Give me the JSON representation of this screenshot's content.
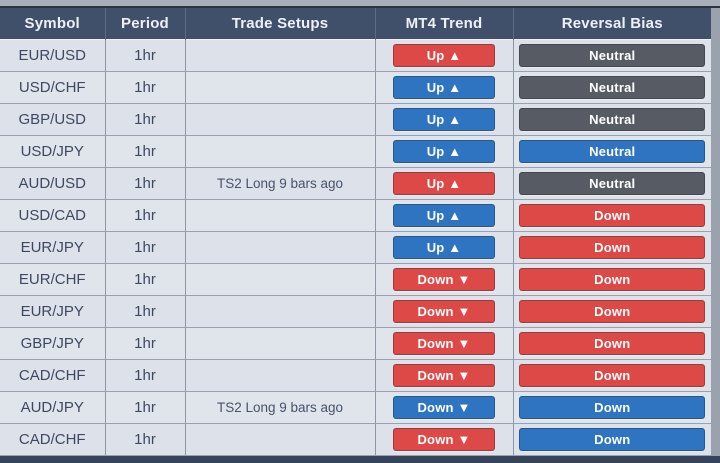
{
  "table": {
    "columns": [
      "Symbol",
      "Period",
      "Trade Setups",
      "MT4 Trend",
      "Reversal Bias"
    ],
    "rows": [
      {
        "symbol": "EUR/USD",
        "period": "1hr",
        "setup": "",
        "trend_label": "Up ▲",
        "trend_color": "red",
        "bias_label": "Neutral",
        "bias_color": "gray"
      },
      {
        "symbol": "USD/CHF",
        "period": "1hr",
        "setup": "",
        "trend_label": "Up ▲",
        "trend_color": "blue",
        "bias_label": "Neutral",
        "bias_color": "gray"
      },
      {
        "symbol": "GBP/USD",
        "period": "1hr",
        "setup": "",
        "trend_label": "Up ▲",
        "trend_color": "blue",
        "bias_label": "Neutral",
        "bias_color": "gray"
      },
      {
        "symbol": "USD/JPY",
        "period": "1hr",
        "setup": "",
        "trend_label": "Up ▲",
        "trend_color": "blue",
        "bias_label": "Neutral",
        "bias_color": "blue"
      },
      {
        "symbol": "AUD/USD",
        "period": "1hr",
        "setup": "TS2 Long 9 bars ago",
        "trend_label": "Up ▲",
        "trend_color": "red",
        "bias_label": "Neutral",
        "bias_color": "gray"
      },
      {
        "symbol": "USD/CAD",
        "period": "1hr",
        "setup": "",
        "trend_label": "Up ▲",
        "trend_color": "blue",
        "bias_label": "Down",
        "bias_color": "red"
      },
      {
        "symbol": "EUR/JPY",
        "period": "1hr",
        "setup": "",
        "trend_label": "Up ▲",
        "trend_color": "blue",
        "bias_label": "Down",
        "bias_color": "red"
      },
      {
        "symbol": "EUR/CHF",
        "period": "1hr",
        "setup": "",
        "trend_label": "Down ▼",
        "trend_color": "red",
        "bias_label": "Down",
        "bias_color": "red"
      },
      {
        "symbol": "EUR/JPY",
        "period": "1hr",
        "setup": "",
        "trend_label": "Down ▼",
        "trend_color": "red",
        "bias_label": "Down",
        "bias_color": "red"
      },
      {
        "symbol": "GBP/JPY",
        "period": "1hr",
        "setup": "",
        "trend_label": "Down ▼",
        "trend_color": "red",
        "bias_label": "Down",
        "bias_color": "red"
      },
      {
        "symbol": "CAD/CHF",
        "period": "1hr",
        "setup": "",
        "trend_label": "Down ▼",
        "trend_color": "red",
        "bias_label": "Down",
        "bias_color": "red"
      },
      {
        "symbol": "AUD/JPY",
        "period": "1hr",
        "setup": "TS2 Long 9 bars ago",
        "trend_label": "Down ▼",
        "trend_color": "blue",
        "bias_label": "Down",
        "bias_color": "blue"
      },
      {
        "symbol": "CAD/CHF",
        "period": "1hr",
        "setup": "",
        "trend_label": "Down ▼",
        "trend_color": "red",
        "bias_label": "Down",
        "bias_color": "blue"
      }
    ]
  },
  "colors": {
    "red": "#dc4946",
    "blue": "#2e74c1",
    "gray": "#575c64",
    "header_bg": "#41506a"
  }
}
